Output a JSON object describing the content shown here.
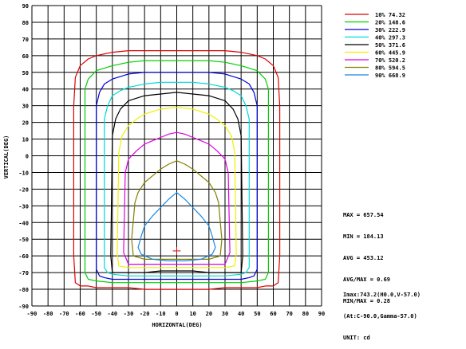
{
  "chart_data": {
    "type": "line",
    "title": "",
    "xlabel": "HORIZONTAL(DEG)",
    "ylabel": "VERTICAL(DEG)",
    "xlim": [
      -90,
      90
    ],
    "ylim": [
      -90,
      90
    ],
    "xticks": [
      "-90",
      "-80",
      "-70",
      "-60",
      "-50",
      "-40",
      "-30",
      "-20",
      "-10",
      "0",
      "10",
      "20",
      "30",
      "40",
      "50",
      "60",
      "70",
      "80",
      "90"
    ],
    "yticks": [
      "90",
      "80",
      "70",
      "60",
      "50",
      "40",
      "30",
      "20",
      "10",
      "0",
      "-10",
      "-20",
      "-30",
      "-40",
      "-50",
      "-60",
      "-70",
      "-80",
      "-90"
    ],
    "grid": true,
    "legend_position": "top-right",
    "series": [
      {
        "name": "10%  74.32",
        "color": "#e00000",
        "x": [
          -63,
          -60,
          -55,
          -50,
          -40,
          -30,
          -20,
          -10,
          0,
          10,
          20,
          30,
          40,
          50,
          55,
          60,
          63,
          64,
          64,
          63,
          60,
          55,
          50,
          40,
          30,
          20,
          10,
          0,
          -10,
          -20,
          -30,
          -40,
          -50,
          -55,
          -60,
          -63,
          -64,
          -64
        ],
        "y": [
          47,
          54,
          58,
          60,
          62,
          63,
          63,
          63,
          63,
          63,
          63,
          63,
          62,
          60,
          58,
          54,
          47,
          30,
          -60,
          -76,
          -78,
          -78,
          -79,
          -79,
          -79,
          -80,
          -80,
          -80,
          -80,
          -80,
          -79,
          -79,
          -79,
          -78,
          -78,
          -76,
          -60,
          30
        ]
      },
      {
        "name": "20%  148.6",
        "color": "#00d000",
        "x": [
          -57,
          -55,
          -50,
          -40,
          -30,
          -20,
          -10,
          0,
          10,
          20,
          30,
          40,
          50,
          55,
          57,
          57,
          55,
          50,
          40,
          30,
          20,
          10,
          0,
          -10,
          -20,
          -30,
          -40,
          -50,
          -55,
          -57
        ],
        "y": [
          40,
          46,
          51,
          54,
          56,
          57,
          57,
          57,
          57,
          57,
          56,
          54,
          51,
          46,
          40,
          -70,
          -74,
          -75,
          -76,
          -76,
          -76,
          -76,
          -76,
          -76,
          -76,
          -76,
          -76,
          -75,
          -74,
          -70
        ]
      },
      {
        "name": "30%  222.9",
        "color": "#0000e0",
        "x": [
          -50,
          -48,
          -45,
          -40,
          -30,
          -20,
          -10,
          0,
          10,
          20,
          30,
          40,
          45,
          48,
          50,
          50,
          48,
          45,
          40,
          30,
          20,
          10,
          0,
          -10,
          -20,
          -30,
          -40,
          -45,
          -48,
          -50
        ],
        "y": [
          30,
          38,
          43,
          46,
          49,
          50,
          50,
          50,
          50,
          50,
          49,
          46,
          43,
          38,
          30,
          -68,
          -72,
          -73,
          -74,
          -74,
          -74,
          -74,
          -74,
          -74,
          -74,
          -74,
          -74,
          -73,
          -72,
          -68
        ]
      },
      {
        "name": "40%  297.3",
        "color": "#00d8d8",
        "x": [
          -45,
          -43,
          -40,
          -35,
          -30,
          -20,
          -10,
          0,
          10,
          20,
          30,
          35,
          40,
          43,
          45,
          45,
          43,
          40,
          30,
          20,
          10,
          0,
          -10,
          -20,
          -30,
          -40,
          -43,
          -45
        ],
        "y": [
          22,
          30,
          36,
          39,
          41,
          43,
          44,
          44,
          44,
          43,
          41,
          39,
          36,
          30,
          22,
          -67,
          -70,
          -71,
          -72,
          -72,
          -72,
          -72,
          -72,
          -72,
          -72,
          -71,
          -70,
          -67
        ]
      },
      {
        "name": "50%  371.6",
        "color": "#000000",
        "x": [
          -40,
          -38,
          -35,
          -30,
          -20,
          -10,
          0,
          10,
          20,
          30,
          35,
          38,
          40,
          41,
          40,
          30,
          20,
          10,
          0,
          -10,
          -20,
          -30,
          -40,
          -41
        ],
        "y": [
          12,
          22,
          28,
          33,
          36,
          37,
          38,
          37,
          36,
          33,
          28,
          22,
          12,
          -60,
          -70,
          -70,
          -70,
          -69,
          -69,
          -69,
          -70,
          -70,
          -70,
          -60
        ]
      },
      {
        "name": "60%  445.9",
        "color": "#f0f000",
        "x": [
          -36,
          -34,
          -30,
          -25,
          -20,
          -10,
          0,
          10,
          20,
          25,
          30,
          34,
          36,
          37,
          36,
          30,
          20,
          10,
          0,
          -10,
          -20,
          -30,
          -36,
          -37
        ],
        "y": [
          2,
          12,
          18,
          22,
          25,
          28,
          29,
          28,
          25,
          22,
          18,
          12,
          2,
          -58,
          -66,
          -67,
          -67,
          -67,
          -67,
          -67,
          -67,
          -67,
          -66,
          -58
        ]
      },
      {
        "name": "70%  520.2",
        "color": "#e000e0",
        "x": [
          -32,
          -30,
          -25,
          -20,
          -15,
          -10,
          -5,
          0,
          5,
          10,
          15,
          20,
          25,
          30,
          32,
          33,
          30,
          20,
          10,
          0,
          -10,
          -20,
          -30,
          -33
        ],
        "y": [
          -10,
          -2,
          3,
          7,
          9,
          11,
          13,
          14,
          13,
          11,
          9,
          7,
          3,
          -2,
          -10,
          -58,
          -65,
          -65,
          -65,
          -65,
          -65,
          -65,
          -65,
          -58
        ]
      },
      {
        "name": "80%  594.5",
        "color": "#808000",
        "x": [
          -26,
          -24,
          -20,
          -15,
          -10,
          -5,
          0,
          5,
          10,
          15,
          20,
          24,
          26,
          28,
          27,
          20,
          10,
          0,
          -10,
          -20,
          -27,
          -28
        ],
        "y": [
          -28,
          -22,
          -16,
          -12,
          -8,
          -5,
          -3,
          -5,
          -8,
          -12,
          -16,
          -22,
          -28,
          -50,
          -60,
          -62,
          -62,
          -62,
          -62,
          -62,
          -60,
          -50
        ]
      },
      {
        "name": "90%  668.9",
        "color": "#1c88e0",
        "x": [
          -22,
          -20,
          -15,
          -10,
          -5,
          0,
          5,
          10,
          15,
          20,
          22,
          24,
          22,
          15,
          5,
          0,
          -5,
          -15,
          -22,
          -24
        ],
        "y": [
          -48,
          -42,
          -36,
          -31,
          -26,
          -22,
          -26,
          -31,
          -36,
          -42,
          -48,
          -55,
          -59,
          -62,
          -63,
          -63,
          -63,
          -62,
          -59,
          -55
        ]
      }
    ],
    "marker": {
      "x": 0,
      "y": -57,
      "color": "#e00000"
    },
    "stats": [
      "MAX = 657.54",
      "MIN = 184.13",
      "AVG = 453.12",
      "AVG/MAX = 0.69",
      "MIN/MAX = 0.28"
    ],
    "imax_lines": [
      "Imax:743.2(H0.0,V-57.0)",
      "(At:C-90.0,Gamma-57.0)",
      "UNIT: cd"
    ]
  }
}
